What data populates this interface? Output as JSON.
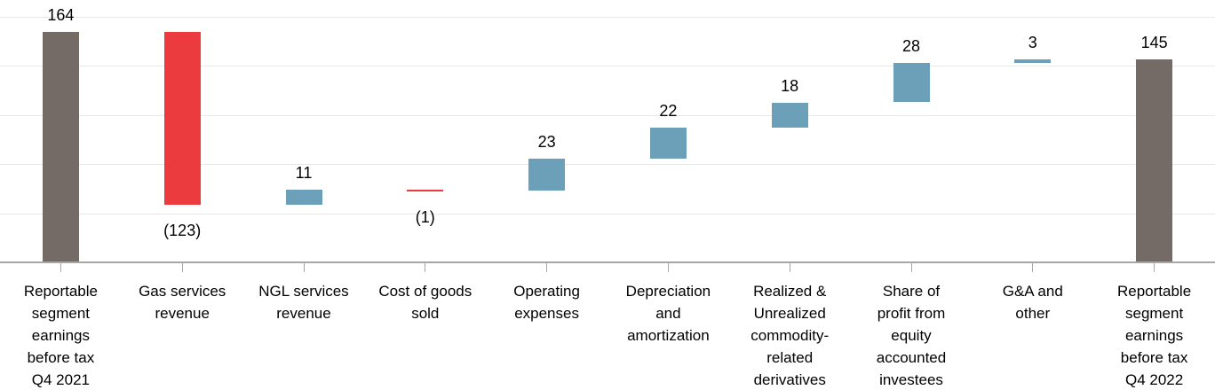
{
  "chart_data": {
    "type": "bar",
    "subtype": "waterfall",
    "title": "",
    "xlabel": "",
    "ylabel": "",
    "ylim": [
      0,
      175
    ],
    "y_gridline_interval": 35,
    "grid": "horizontal gridlines only, no y-axis tick labels",
    "legend_position": "none",
    "axis_color": "#A7A7A7",
    "gridline_color": "#E9E8E8",
    "data_label_color": "#000000",
    "colors": {
      "total": "#756B66",
      "increase": "#6BA0B8",
      "decrease": "#EC3B3F"
    },
    "categories": [
      "Reportable segment earnings before tax Q4 2021",
      "Gas services revenue",
      "NGL services revenue",
      "Cost of goods sold",
      "Operating expenses",
      "Depreciation and amortization",
      "Realized & Unrealized commodity-related derivatives",
      "Share of profit from equity accounted investees",
      "G&A and other",
      "Reportable segment earnings before tax Q4 2022"
    ],
    "steps": [
      {
        "category": "Reportable segment earnings before tax Q4 2021",
        "category_lines": "Reportable\nsegment\nearnings\nbefore tax\nQ4 2021",
        "value": 164,
        "display": "164",
        "kind": "total"
      },
      {
        "category": "Gas services revenue",
        "category_lines": "Gas services\nrevenue",
        "value": -123,
        "display": "(123)",
        "kind": "decrease"
      },
      {
        "category": "NGL services revenue",
        "category_lines": "NGL services\nrevenue",
        "value": 11,
        "display": "11",
        "kind": "increase"
      },
      {
        "category": "Cost of goods sold",
        "category_lines": "Cost of goods\nsold",
        "value": -1,
        "display": "(1)",
        "kind": "decrease"
      },
      {
        "category": "Operating expenses",
        "category_lines": "Operating\nexpenses",
        "value": 23,
        "display": "23",
        "kind": "increase"
      },
      {
        "category": "Depreciation and amortization",
        "category_lines": "Depreciation\nand\namortization",
        "value": 22,
        "display": "22",
        "kind": "increase"
      },
      {
        "category": "Realized & Unrealized commodity-related derivatives",
        "category_lines": "Realized &\nUnrealized\ncommodity-\nrelated\nderivatives",
        "value": 18,
        "display": "18",
        "kind": "increase"
      },
      {
        "category": "Share of profit from equity accounted investees",
        "category_lines": "Share of\nprofit from\nequity\naccounted\ninvestees",
        "value": 28,
        "display": "28",
        "kind": "increase"
      },
      {
        "category": "G&A and other",
        "category_lines": "G&A and\nother",
        "value": 3,
        "display": "3",
        "kind": "increase"
      },
      {
        "category": "Reportable segment earnings before tax Q4 2022",
        "category_lines": "Reportable\nsegment\nearnings\nbefore tax\nQ4 2022",
        "value": 145,
        "display": "145",
        "kind": "total"
      }
    ]
  }
}
